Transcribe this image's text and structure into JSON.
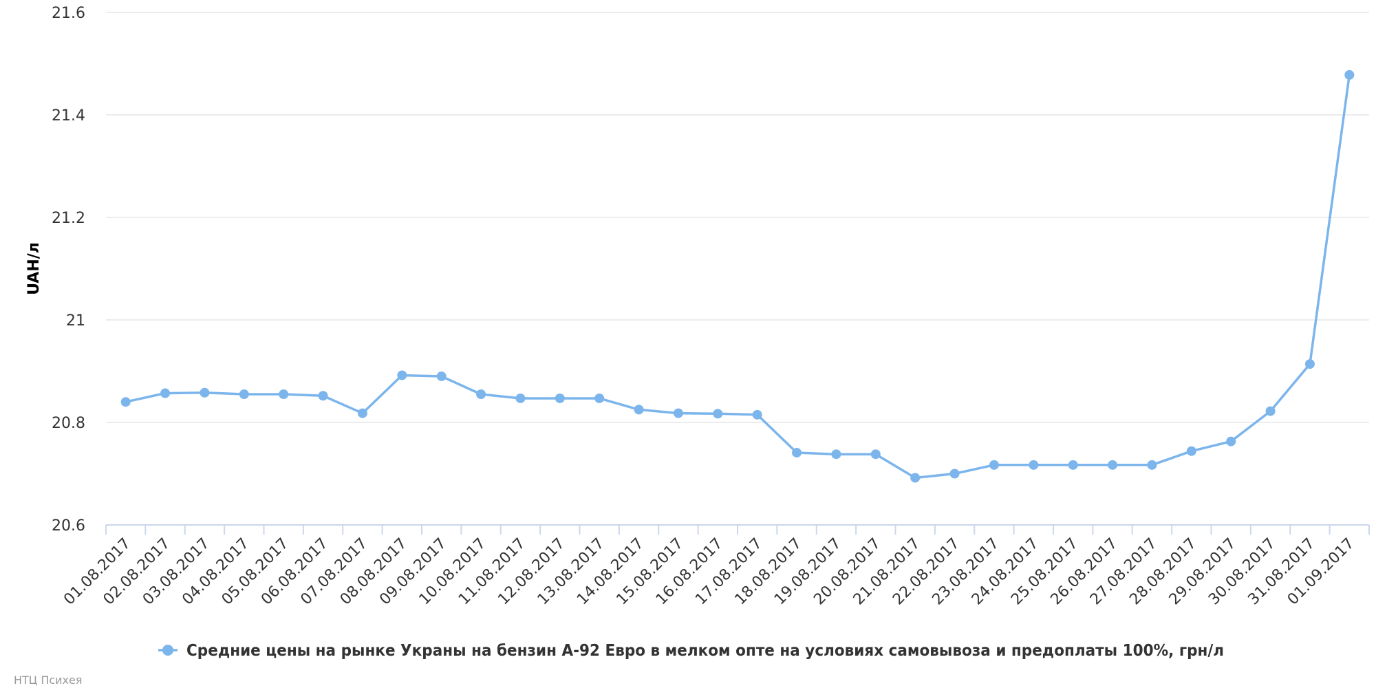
{
  "chart_data": {
    "type": "line",
    "title": "",
    "xlabel": "",
    "ylabel": "UAH/л",
    "ylim": [
      20.6,
      21.6
    ],
    "yticks": [
      "20.6",
      "20.8",
      "21",
      "21.2",
      "21.4",
      "21.6"
    ],
    "grid": true,
    "legend_position": "bottom-center",
    "categories": [
      "01.08.2017",
      "02.08.2017",
      "03.08.2017",
      "04.08.2017",
      "05.08.2017",
      "06.08.2017",
      "07.08.2017",
      "08.08.2017",
      "09.08.2017",
      "10.08.2017",
      "11.08.2017",
      "12.08.2017",
      "13.08.2017",
      "14.08.2017",
      "15.08.2017",
      "16.08.2017",
      "17.08.2017",
      "18.08.2017",
      "19.08.2017",
      "20.08.2017",
      "21.08.2017",
      "22.08.2017",
      "23.08.2017",
      "24.08.2017",
      "25.08.2017",
      "26.08.2017",
      "27.08.2017",
      "28.08.2017",
      "29.08.2017",
      "30.08.2017",
      "31.08.2017",
      "01.09.2017"
    ],
    "series": [
      {
        "name": "Средние цены на рынке Украны на бензин А-92 Евро в мелком опте на условиях самовывоза и предоплаты 100%, грн/л",
        "color": "#7cb5ec",
        "values": [
          20.84,
          20.857,
          20.858,
          20.855,
          20.855,
          20.852,
          20.818,
          20.892,
          20.89,
          20.855,
          20.847,
          20.847,
          20.847,
          20.825,
          20.818,
          20.817,
          20.815,
          20.741,
          20.738,
          20.738,
          20.692,
          20.7,
          20.717,
          20.717,
          20.717,
          20.717,
          20.717,
          20.744,
          20.763,
          20.822,
          20.914,
          21.478
        ]
      }
    ]
  },
  "credit": "НТЦ Психея"
}
